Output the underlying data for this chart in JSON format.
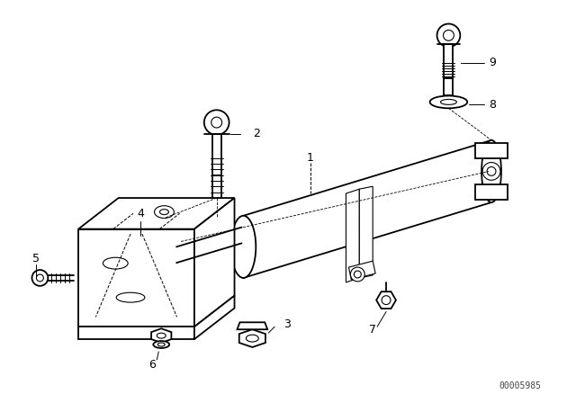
{
  "background_color": "#ffffff",
  "line_color": "#000000",
  "watermark": "00005985",
  "fig_width": 6.4,
  "fig_height": 4.48,
  "dpi": 100,
  "label_fontsize": 9,
  "watermark_fontsize": 7
}
